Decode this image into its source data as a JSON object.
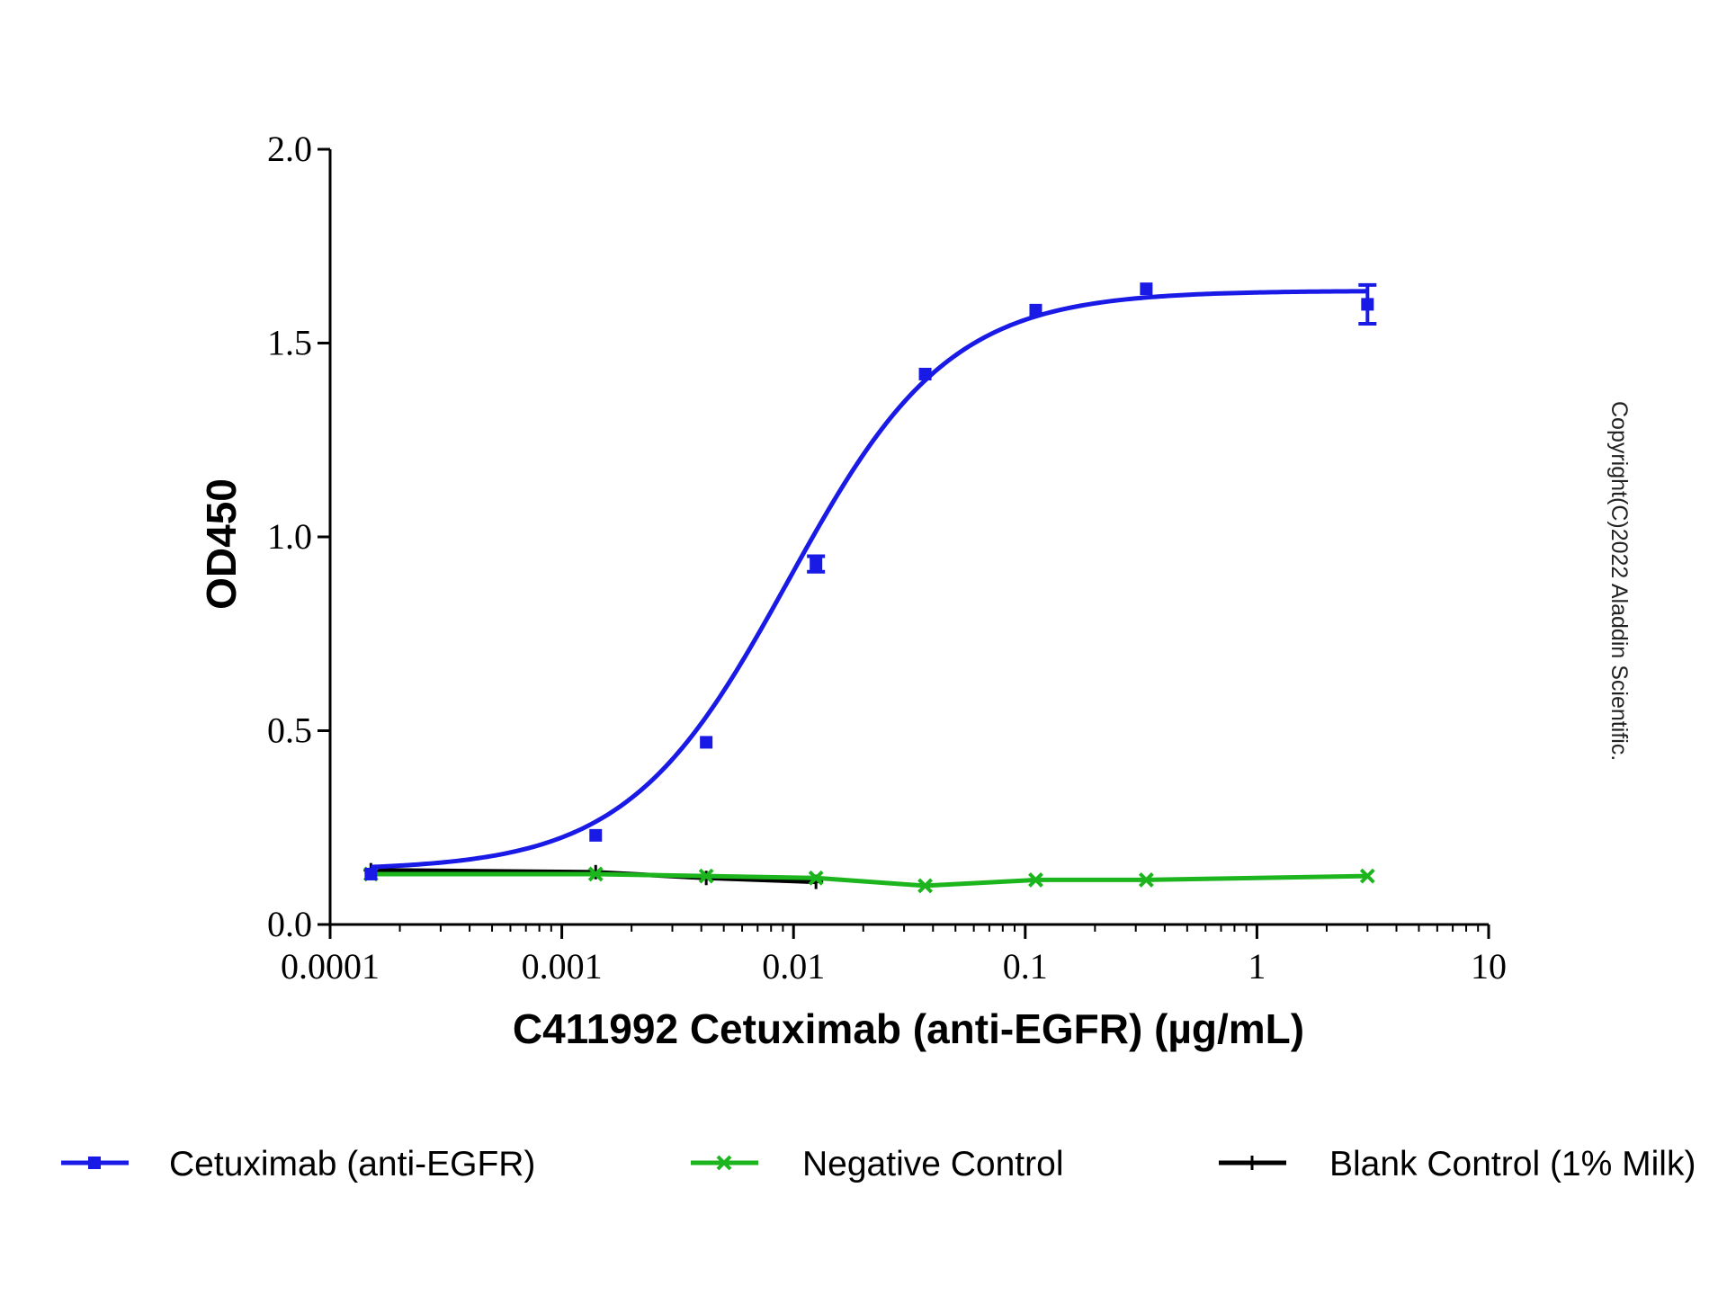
{
  "copyright": "Copyright(C)2022 Aladdin Scientific.",
  "chart_data": {
    "type": "line",
    "title": "",
    "xlabel": "C411992 Cetuximab (anti-EGFR) (µg/mL)",
    "ylabel": "OD450",
    "xscale": "log",
    "xlim": [
      0.0001,
      10
    ],
    "ylim": [
      0,
      2.0
    ],
    "xticks": [
      0.0001,
      0.001,
      0.01,
      0.1,
      1,
      10
    ],
    "xtick_labels": [
      "0.0001",
      "0.001",
      "0.01",
      "0.1",
      "1",
      "10"
    ],
    "yticks": [
      0,
      0.5,
      1.0,
      1.5,
      2.0
    ],
    "ytick_labels": [
      "0.0",
      "0.5",
      "1.0",
      "1.5",
      "2.0"
    ],
    "grid": false,
    "legend_position": "bottom",
    "series": [
      {
        "name": "Cetuximab (anti-EGFR)",
        "color": "#1a1ae6",
        "marker": "square",
        "fit": "sigmoidal",
        "fit_params": {
          "bottom": 0.14,
          "top": 1.635,
          "ec50": 0.0095,
          "hill": 1.25
        },
        "x": [
          0.00015,
          0.0014,
          0.0042,
          0.0125,
          0.037,
          0.111,
          0.333,
          3.0
        ],
        "y": [
          0.13,
          0.23,
          0.47,
          0.93,
          1.42,
          1.585,
          1.64,
          1.6
        ],
        "error": [
          0.0,
          0.0,
          0.0,
          0.02,
          0.0,
          0.0,
          0.0,
          0.05
        ]
      },
      {
        "name": "Negative Control",
        "color": "#1db51d",
        "marker": "x",
        "fit": "line",
        "x": [
          0.00015,
          0.0014,
          0.0042,
          0.0125,
          0.037,
          0.111,
          0.333,
          3.0
        ],
        "y": [
          0.13,
          0.13,
          0.125,
          0.12,
          0.1,
          0.115,
          0.115,
          0.125
        ],
        "error": [
          0,
          0,
          0,
          0,
          0,
          0,
          0,
          0
        ]
      },
      {
        "name": "Blank Control (1% Milk)",
        "color": "#000000",
        "marker": "plus",
        "fit": "line",
        "x": [
          0.00015,
          0.0014,
          0.0042,
          0.0125
        ],
        "y": [
          0.14,
          0.135,
          0.12,
          0.11
        ],
        "error": [
          0,
          0,
          0,
          0
        ]
      }
    ]
  }
}
